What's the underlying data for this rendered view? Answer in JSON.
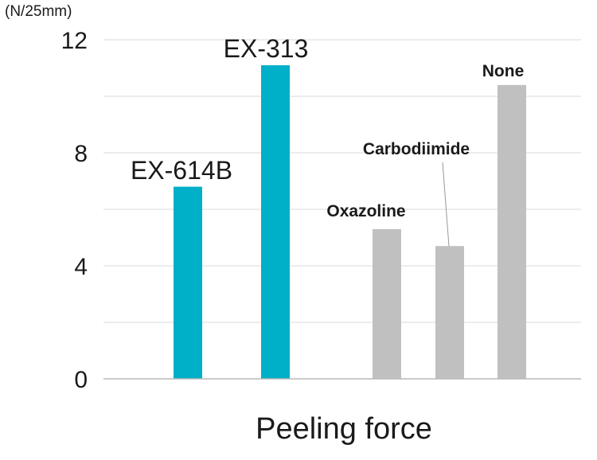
{
  "chart_data": {
    "type": "bar",
    "title": "",
    "unit_label": "(N/25mm)",
    "xlabel": "Peeling force",
    "ylabel": "(N/25mm)",
    "ylim": [
      0,
      12
    ],
    "yticks": [
      0,
      4,
      8,
      12
    ],
    "grid": true,
    "categories": [
      "EX-614B",
      "EX-313",
      "Oxazoline",
      "Carbodiimide",
      "None"
    ],
    "values": [
      6.8,
      11.1,
      5.3,
      4.7,
      10.4
    ],
    "colors": [
      "#00b0c8",
      "#00b0c8",
      "#c0c0c0",
      "#c0c0c0",
      "#c0c0c0"
    ]
  },
  "colors": {
    "highlight": "#00b0c8",
    "comparison": "#c0c0c0",
    "gridline": "#d9d9d9",
    "axis": "#b8b8b8"
  }
}
